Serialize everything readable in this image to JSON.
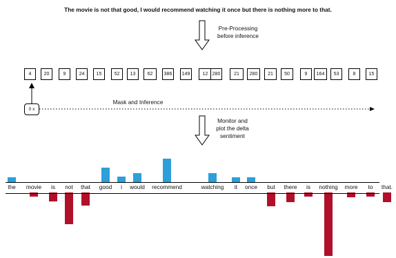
{
  "sentence": "The movie is not that good, I would recommend watching it once but there is nothing more to that.",
  "steps": {
    "preprocess_line1": "Pre-Processing",
    "preprocess_line2": "before inference",
    "mask_label": "Mask and Inference",
    "monitor_line1": "Monitor and",
    "monitor_line2": "plot the delta",
    "monitor_line3": "sentiment"
  },
  "mask_box_label": "0 x",
  "tokens": [
    "4",
    "20",
    "9",
    "24",
    "15",
    "52",
    "13",
    "62",
    "386",
    "149",
    "12",
    "280",
    "21",
    "280",
    "21",
    "50",
    "9",
    "164",
    "53",
    "8",
    "15"
  ],
  "colors": {
    "positive": "#2d9fd9",
    "negative": "#b0102a"
  },
  "chart_data": {
    "type": "bar",
    "categories": [
      "the",
      "movie",
      "is",
      "not",
      "that",
      "good",
      "i",
      "would",
      "recommend",
      "watching",
      "it",
      "once",
      "but",
      "there",
      "is",
      "nothing",
      "more",
      "to",
      "that."
    ],
    "values": [
      7,
      -6,
      -13,
      -46,
      -19,
      21,
      8,
      13,
      34,
      13,
      7,
      7,
      -20,
      -14,
      -6,
      -92,
      -7,
      -6,
      -14
    ],
    "title": "",
    "xlabel": "",
    "ylabel": ""
  }
}
